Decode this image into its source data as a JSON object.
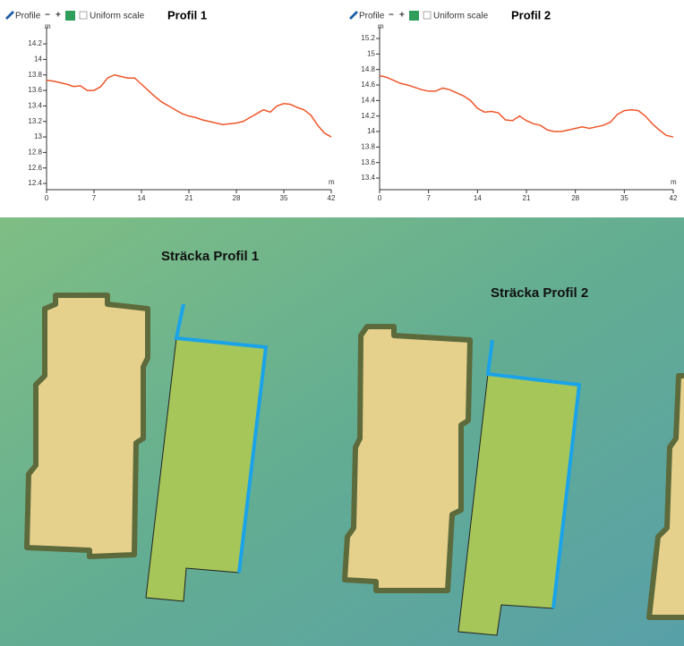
{
  "toolbar": {
    "profile": "Profile",
    "minus": "−",
    "plus": "+",
    "uniform": "Uniform scale"
  },
  "chart_data": [
    {
      "type": "line",
      "title": "Profil 1",
      "y_label": "m",
      "x_label": "m",
      "xlim": [
        0,
        42
      ],
      "xticks": [
        0,
        7,
        14,
        21,
        28,
        35,
        42
      ],
      "ylim": [
        12.32,
        14.42
      ],
      "yticks": [
        12.4,
        12.6,
        12.8,
        13,
        13.2,
        13.4,
        13.6,
        13.8,
        14,
        14.2
      ],
      "x": [
        0,
        1,
        2,
        3,
        4,
        5,
        6,
        7,
        8,
        9,
        10,
        11,
        12,
        13,
        14,
        15,
        16,
        17,
        18,
        19,
        20,
        21,
        22,
        23,
        24,
        25,
        26,
        27,
        28,
        29,
        30,
        31,
        32,
        33,
        34,
        35,
        36,
        37,
        38,
        39,
        40,
        41,
        42
      ],
      "series": [
        {
          "color": "#f0562a",
          "values": [
            13.73,
            13.72,
            13.7,
            13.68,
            13.65,
            13.66,
            13.6,
            13.6,
            13.65,
            13.76,
            13.8,
            13.78,
            13.76,
            13.76,
            13.68,
            13.6,
            13.52,
            13.45,
            13.4,
            13.35,
            13.3,
            13.27,
            13.25,
            13.22,
            13.2,
            13.18,
            13.16,
            13.17,
            13.18,
            13.2,
            13.25,
            13.3,
            13.35,
            13.32,
            13.4,
            13.43,
            13.42,
            13.38,
            13.35,
            13.28,
            13.15,
            13.05,
            13.0
          ]
        }
      ]
    },
    {
      "type": "line",
      "title": "Profil 2",
      "y_label": "m",
      "x_label": "m",
      "xlim": [
        0,
        42
      ],
      "xticks": [
        0,
        7,
        14,
        21,
        28,
        35,
        42
      ],
      "ylim": [
        13.25,
        15.35
      ],
      "yticks": [
        13.4,
        13.6,
        13.8,
        14,
        14.2,
        14.4,
        14.6,
        14.8,
        15,
        15.2
      ],
      "x": [
        0,
        1,
        2,
        3,
        4,
        5,
        6,
        7,
        8,
        9,
        10,
        11,
        12,
        13,
        14,
        15,
        16,
        17,
        18,
        19,
        20,
        21,
        22,
        23,
        24,
        25,
        26,
        27,
        28,
        29,
        30,
        31,
        32,
        33,
        34,
        35,
        36,
        37,
        38,
        39,
        40,
        41,
        42
      ],
      "series": [
        {
          "color": "#f0562a",
          "values": [
            14.72,
            14.7,
            14.66,
            14.62,
            14.6,
            14.57,
            14.54,
            14.52,
            14.52,
            14.56,
            14.54,
            14.5,
            14.46,
            14.4,
            14.3,
            14.25,
            14.26,
            14.24,
            14.15,
            14.14,
            14.2,
            14.14,
            14.1,
            14.08,
            14.02,
            14.0,
            14.0,
            14.02,
            14.04,
            14.06,
            14.04,
            14.06,
            14.08,
            14.12,
            14.22,
            14.27,
            14.28,
            14.27,
            14.2,
            14.1,
            14.02,
            13.95,
            13.93
          ]
        }
      ]
    }
  ],
  "map": {
    "labels": [
      "Sträcka Profil 1",
      "Sträcka Profil 2"
    ]
  }
}
